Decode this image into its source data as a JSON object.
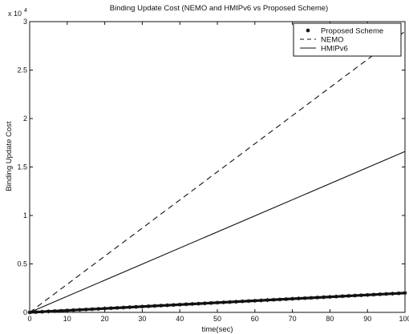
{
  "chart_data": {
    "type": "line",
    "title": "Binding Update Cost (NEMO and HMIPv6  vs Proposed Scheme)",
    "xlabel": "time(sec)",
    "ylabel": "Binding Update Cost",
    "y_multiplier_label": "x 10",
    "y_multiplier_exp": "4",
    "xlim": [
      0,
      100
    ],
    "ylim": [
      0,
      30000
    ],
    "x_ticks": [
      0,
      10,
      20,
      30,
      40,
      50,
      60,
      70,
      80,
      90,
      100
    ],
    "x_tick_labels": [
      "0",
      "10",
      "20",
      "30",
      "40",
      "50",
      "60",
      "70",
      "80",
      "90",
      "100"
    ],
    "y_ticks": [
      0,
      5000,
      10000,
      15000,
      20000,
      25000,
      30000
    ],
    "y_tick_labels": [
      "0",
      "0.5",
      "1",
      "1.5",
      "2",
      "2.5",
      "3"
    ],
    "grid": false,
    "legend_position": "top-right",
    "x": [
      0,
      100
    ],
    "series": [
      {
        "name": "Proposed Scheme",
        "style": "star-markers",
        "color": "#111111",
        "values": [
          0,
          2000
        ]
      },
      {
        "name": "NEMO",
        "style": "dashed",
        "color": "#111111",
        "values": [
          0,
          29000
        ]
      },
      {
        "name": "HMIPv6",
        "style": "solid",
        "color": "#111111",
        "values": [
          0,
          16600
        ]
      }
    ]
  }
}
